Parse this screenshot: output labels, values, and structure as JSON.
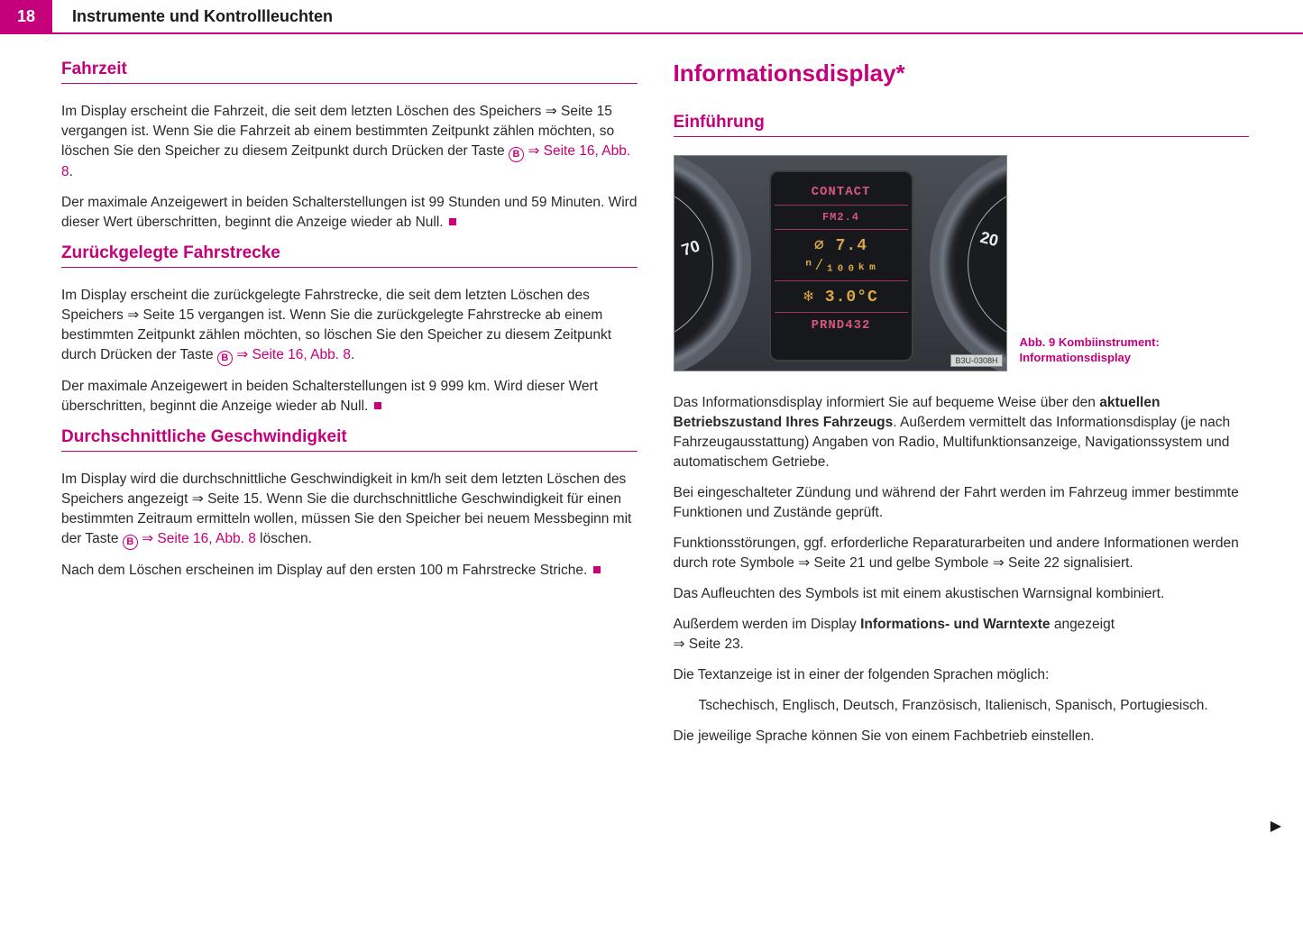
{
  "header": {
    "page_number": "18",
    "title": "Instrumente und Kontrollleuchten"
  },
  "accent_color": "#c4007a",
  "text_color": "#2a2a2a",
  "left": {
    "sec1": {
      "heading": "Fahrzeit",
      "p1a": "Im Display erscheint die Fahrzeit, die seit dem letzten Löschen des Speichers ",
      "p1b": " Seite 15 vergangen ist. Wenn Sie die Fahrzeit ab einem bestimmten Zeitpunkt zählen möchten, so löschen Sie den Speicher zu diesem Zeitpunkt durch Drücken der Taste ",
      "link1": " Seite 16, Abb. 8",
      "p2": "Der maximale Anzeigewert in beiden Schalterstellungen ist 99 Stunden und 59 Minuten. Wird dieser Wert überschritten, beginnt die Anzeige wieder ab Null."
    },
    "sec2": {
      "heading": "Zurückgelegte Fahrstrecke",
      "p1a": "Im Display erscheint die zurückgelegte Fahrstrecke, die seit dem letzten Löschen des Speichers ",
      "p1b": " Seite 15 vergangen ist. Wenn Sie die zurückgelegte Fahrstrecke ab einem bestimmten Zeitpunkt zählen möchten, so löschen Sie den Speicher zu diesem Zeitpunkt durch Drücken der Taste ",
      "link1": " Seite 16, Abb. 8",
      "p2": "Der maximale Anzeigewert in beiden Schalterstellungen ist 9 999 km. Wird dieser Wert überschritten, beginnt die Anzeige wieder ab Null."
    },
    "sec3": {
      "heading": "Durchschnittliche Geschwindigkeit",
      "p1a": "Im Display wird die durchschnittliche Geschwindigkeit in km/h seit dem letzten Löschen des Speichers angezeigt ",
      "p1b": " Seite 15. Wenn Sie die durchschnittliche Geschwindigkeit für einen bestimmten Zeitraum ermitteln wollen, müssen Sie den Speicher bei neuem Messbeginn mit der Taste ",
      "link1": " Seite 16, Abb. 8",
      "p1c": " löschen.",
      "p2": "Nach dem Löschen erscheinen im Display auf den ersten 100 m Fahrstrecke Striche."
    }
  },
  "right": {
    "main_heading": "Informationsdisplay*",
    "sub_heading": "Einführung",
    "figure": {
      "gauge_left_number": "70",
      "gauge_right_number": "20",
      "line1": "CONTACT",
      "line2": "FM2.4",
      "line3": "∅  7.4 ⁿ⁄₁₀₀ₖₘ",
      "line4": "❄  3.0°C",
      "line5": "PRND432",
      "watermark": "B3U-0308H",
      "caption": "Abb. 9   Kombiinstrument: Informationsdisplay"
    },
    "p1a": "Das Informationsdisplay informiert Sie auf bequeme Weise über den ",
    "p1b": "aktuellen Betriebszustand Ihres Fahrzeugs",
    "p1c": ". Außerdem vermittelt das Informationsdisplay (je nach Fahrzeugausstattung) Angaben von Radio, Multifunktionsanzeige, Navigationssystem und automatischem Getriebe.",
    "p2": "Bei eingeschalteter Zündung und während der Fahrt werden im Fahrzeug immer bestimmte Funktionen und Zustände geprüft.",
    "p3a": "Funktionsstörungen, ggf. erforderliche Reparaturarbeiten und andere Informationen werden durch rote Symbole ",
    "p3b": " Seite 21 und gelbe Symbole ",
    "p3c": " Seite 22 signalisiert.",
    "p4": "Das Aufleuchten des Symbols ist mit einem akustischen Warnsignal kombiniert.",
    "p5a": "Außerdem werden im Display ",
    "p5b": "Informations- und Warntexte",
    "p5c": " angezeigt ",
    "p5d": " Seite 23.",
    "p6": "Die Textanzeige ist in einer der folgenden Sprachen möglich:",
    "p7": "Tschechisch, Englisch, Deutsch, Französisch, Italienisch, Spanisch, Portugiesisch.",
    "p8": "Die jeweilige Sprache können Sie von einem Fachbetrieb einstellen."
  },
  "glyphs": {
    "arrow": "⇒",
    "button_letter": "B",
    "continue": "▶"
  }
}
